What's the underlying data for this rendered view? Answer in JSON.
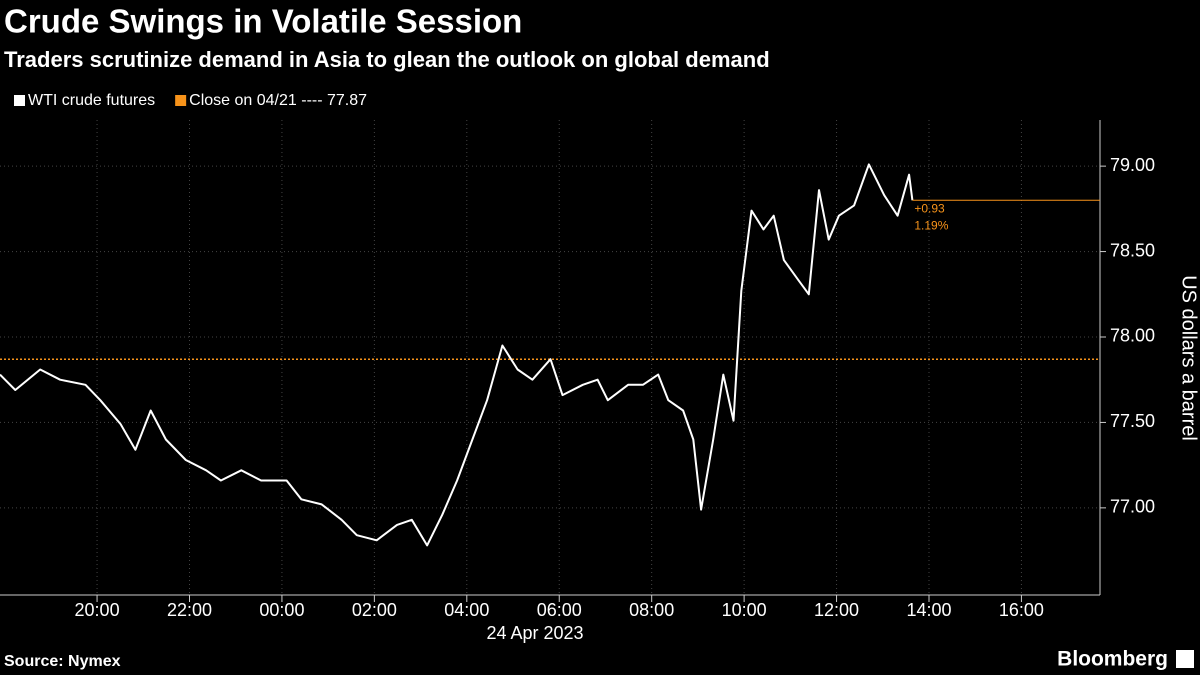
{
  "chart_data": {
    "type": "line",
    "title": "Crude Swings in Volatile Session",
    "subtitle": "Traders scrutinize demand in Asia to glean the outlook on global demand",
    "y_axis_label": "US dollars a barrel",
    "x_date_label": "24 Apr 2023",
    "source": "Source: Nymex",
    "brand": "Bloomberg",
    "x": [
      -6.1,
      -5.77,
      -5.23,
      -4.8,
      -4.25,
      -3.93,
      -3.49,
      -3.17,
      -2.84,
      -2.51,
      -2.08,
      -1.64,
      -1.32,
      -0.88,
      -0.45,
      0.1,
      0.42,
      0.86,
      1.29,
      1.62,
      2.05,
      2.49,
      2.81,
      3.14,
      3.47,
      3.79,
      4.12,
      4.44,
      4.77,
      5.1,
      5.42,
      5.81,
      6.07,
      6.51,
      6.83,
      7.05,
      7.49,
      7.81,
      8.14,
      8.36,
      8.68,
      8.9,
      9.07,
      9.33,
      9.55,
      9.77,
      9.94,
      10.16,
      10.42,
      10.64,
      10.86,
      11.18,
      11.4,
      11.62,
      11.83,
      12.05,
      12.38,
      12.7,
      13.03,
      13.32,
      13.57,
      13.64
    ],
    "series": [
      {
        "name": "WTI crude futures",
        "color": "#ffffff",
        "values": [
          77.78,
          77.69,
          77.81,
          77.75,
          77.72,
          77.63,
          77.49,
          77.34,
          77.57,
          77.4,
          77.28,
          77.22,
          77.16,
          77.22,
          77.16,
          77.16,
          77.05,
          77.02,
          76.93,
          76.84,
          76.81,
          76.9,
          76.93,
          76.78,
          76.96,
          77.16,
          77.4,
          77.63,
          77.95,
          77.81,
          77.75,
          77.87,
          77.66,
          77.72,
          77.75,
          77.63,
          77.72,
          77.72,
          77.78,
          77.63,
          77.57,
          77.4,
          76.99,
          77.4,
          77.78,
          77.51,
          78.27,
          78.74,
          78.63,
          78.71,
          78.45,
          78.33,
          78.25,
          78.86,
          78.57,
          78.71,
          78.77,
          79.01,
          78.83,
          78.71,
          78.95,
          78.8
        ]
      }
    ],
    "reference_line": {
      "label": "Close on 04/21 ---- 77.87",
      "value": 77.87,
      "color": "#f7931a"
    },
    "change_labels": [
      "+0.93",
      "1.19%"
    ],
    "xlim": [
      -6.1,
      17.7
    ],
    "ylim": [
      76.49,
      79.27
    ],
    "xticks": [
      {
        "value": -4,
        "label": "20:00"
      },
      {
        "value": -2,
        "label": "22:00"
      },
      {
        "value": 0,
        "label": "00:00"
      },
      {
        "value": 2,
        "label": "02:00"
      },
      {
        "value": 4,
        "label": "04:00"
      },
      {
        "value": 6,
        "label": "06:00"
      },
      {
        "value": 8,
        "label": "08:00"
      },
      {
        "value": 10,
        "label": "10:00"
      },
      {
        "value": 12,
        "label": "12:00"
      },
      {
        "value": 14,
        "label": "14:00"
      },
      {
        "value": 16,
        "label": "16:00"
      }
    ],
    "yticks": [
      {
        "value": 77,
        "label": "77.00"
      },
      {
        "value": 77.5,
        "label": "77.50"
      },
      {
        "value": 78,
        "label": "78.00"
      },
      {
        "value": 78.5,
        "label": "78.50"
      },
      {
        "value": 79,
        "label": "79.00"
      }
    ],
    "grid": true
  }
}
